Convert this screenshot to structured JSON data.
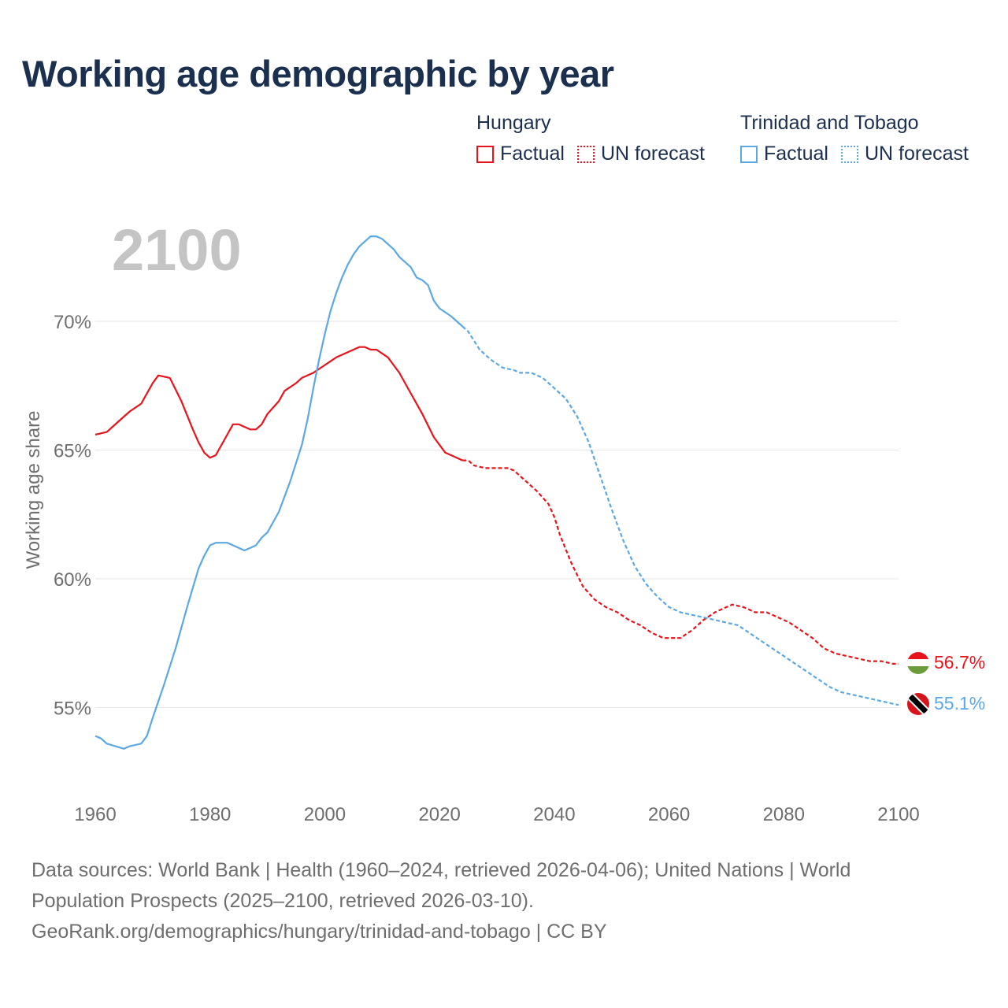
{
  "title": "Working age demographic by year",
  "big_year": "2100",
  "legend": [
    {
      "name": "Hungary",
      "factual_label": "Factual",
      "forecast_label": "UN forecast",
      "color": "#e8141c"
    },
    {
      "name": "Trinidad and Tobago",
      "factual_label": "Factual",
      "forecast_label": "UN forecast",
      "color": "#5ba8e4"
    }
  ],
  "colors": {
    "hungary": "#e8141c",
    "tt": "#5ba8e4",
    "grid": "#e6e6e6",
    "axis_text": "#6e6e6e",
    "big_year": "#c4c4c4"
  },
  "footer": {
    "line1": "Data sources: World Bank | Health (1960–2024, retrieved 2026-04-06); United Nations | World",
    "line2": "Population Prospects (2025–2100, retrieved 2026-03-10).",
    "line3": "GeoRank.org/demographics/hungary/trinidad-and-tobago | CC BY"
  },
  "chart_data": {
    "type": "line",
    "title": "Working age demographic by year",
    "xlabel": "",
    "ylabel": "Working age share",
    "xlim": [
      1960,
      2100
    ],
    "ylim": [
      52,
      74
    ],
    "x_ticks": [
      1960,
      1980,
      2000,
      2020,
      2040,
      2060,
      2080,
      2100
    ],
    "y_ticks": [
      55,
      60,
      65,
      70
    ],
    "y_tick_labels": [
      "55%",
      "60%",
      "65%",
      "70%"
    ],
    "factual_end_year": 2024,
    "series": [
      {
        "name": "Hungary",
        "end_label": "56.7%",
        "points": [
          [
            1960,
            65.6
          ],
          [
            1962,
            65.7
          ],
          [
            1964,
            66.1
          ],
          [
            1966,
            66.5
          ],
          [
            1968,
            66.8
          ],
          [
            1970,
            67.6
          ],
          [
            1971,
            67.9
          ],
          [
            1973,
            67.8
          ],
          [
            1975,
            66.9
          ],
          [
            1977,
            65.8
          ],
          [
            1978,
            65.3
          ],
          [
            1979,
            64.9
          ],
          [
            1980,
            64.7
          ],
          [
            1981,
            64.8
          ],
          [
            1983,
            65.6
          ],
          [
            1984,
            66.0
          ],
          [
            1985,
            66.0
          ],
          [
            1987,
            65.8
          ],
          [
            1988,
            65.8
          ],
          [
            1989,
            66.0
          ],
          [
            1990,
            66.4
          ],
          [
            1992,
            66.9
          ],
          [
            1993,
            67.3
          ],
          [
            1995,
            67.6
          ],
          [
            1996,
            67.8
          ],
          [
            1998,
            68.0
          ],
          [
            2000,
            68.3
          ],
          [
            2002,
            68.6
          ],
          [
            2004,
            68.8
          ],
          [
            2006,
            69.0
          ],
          [
            2007,
            69.0
          ],
          [
            2008,
            68.9
          ],
          [
            2009,
            68.9
          ],
          [
            2011,
            68.6
          ],
          [
            2013,
            68.0
          ],
          [
            2015,
            67.2
          ],
          [
            2017,
            66.4
          ],
          [
            2019,
            65.5
          ],
          [
            2021,
            64.9
          ],
          [
            2022,
            64.8
          ],
          [
            2024,
            64.6
          ],
          [
            2025,
            64.6
          ],
          [
            2026,
            64.4
          ],
          [
            2028,
            64.3
          ],
          [
            2030,
            64.3
          ],
          [
            2032,
            64.3
          ],
          [
            2033,
            64.2
          ],
          [
            2035,
            63.8
          ],
          [
            2037,
            63.4
          ],
          [
            2039,
            62.9
          ],
          [
            2040,
            62.4
          ],
          [
            2041,
            61.7
          ],
          [
            2043,
            60.6
          ],
          [
            2045,
            59.7
          ],
          [
            2047,
            59.2
          ],
          [
            2049,
            58.9
          ],
          [
            2051,
            58.7
          ],
          [
            2053,
            58.4
          ],
          [
            2055,
            58.2
          ],
          [
            2057,
            57.9
          ],
          [
            2059,
            57.7
          ],
          [
            2062,
            57.7
          ],
          [
            2064,
            58.0
          ],
          [
            2066,
            58.4
          ],
          [
            2068,
            58.7
          ],
          [
            2070,
            58.9
          ],
          [
            2071,
            59.0
          ],
          [
            2073,
            58.9
          ],
          [
            2075,
            58.7
          ],
          [
            2077,
            58.7
          ],
          [
            2079,
            58.5
          ],
          [
            2081,
            58.3
          ],
          [
            2083,
            58.0
          ],
          [
            2085,
            57.7
          ],
          [
            2087,
            57.3
          ],
          [
            2089,
            57.1
          ],
          [
            2091,
            57.0
          ],
          [
            2093,
            56.9
          ],
          [
            2095,
            56.8
          ],
          [
            2097,
            56.8
          ],
          [
            2099,
            56.7
          ],
          [
            2100,
            56.7
          ]
        ]
      },
      {
        "name": "Trinidad and Tobago",
        "end_label": "55.1%",
        "points": [
          [
            1960,
            53.9
          ],
          [
            1961,
            53.8
          ],
          [
            1962,
            53.6
          ],
          [
            1965,
            53.4
          ],
          [
            1966,
            53.5
          ],
          [
            1968,
            53.6
          ],
          [
            1969,
            53.9
          ],
          [
            1970,
            54.6
          ],
          [
            1972,
            55.9
          ],
          [
            1974,
            57.3
          ],
          [
            1976,
            58.9
          ],
          [
            1978,
            60.4
          ],
          [
            1979,
            60.9
          ],
          [
            1980,
            61.3
          ],
          [
            1981,
            61.4
          ],
          [
            1983,
            61.4
          ],
          [
            1984,
            61.3
          ],
          [
            1986,
            61.1
          ],
          [
            1988,
            61.3
          ],
          [
            1989,
            61.6
          ],
          [
            1990,
            61.8
          ],
          [
            1992,
            62.6
          ],
          [
            1994,
            63.8
          ],
          [
            1996,
            65.2
          ],
          [
            1997,
            66.2
          ],
          [
            1998,
            67.4
          ],
          [
            1999,
            68.5
          ],
          [
            2000,
            69.5
          ],
          [
            2001,
            70.4
          ],
          [
            2002,
            71.1
          ],
          [
            2003,
            71.7
          ],
          [
            2004,
            72.2
          ],
          [
            2005,
            72.6
          ],
          [
            2006,
            72.9
          ],
          [
            2007,
            73.1
          ],
          [
            2008,
            73.3
          ],
          [
            2009,
            73.3
          ],
          [
            2010,
            73.2
          ],
          [
            2011,
            73.0
          ],
          [
            2012,
            72.8
          ],
          [
            2013,
            72.5
          ],
          [
            2015,
            72.1
          ],
          [
            2016,
            71.7
          ],
          [
            2017,
            71.6
          ],
          [
            2018,
            71.4
          ],
          [
            2019,
            70.8
          ],
          [
            2020,
            70.5
          ],
          [
            2022,
            70.2
          ],
          [
            2024,
            69.8
          ],
          [
            2025,
            69.6
          ],
          [
            2027,
            68.9
          ],
          [
            2029,
            68.5
          ],
          [
            2031,
            68.2
          ],
          [
            2033,
            68.1
          ],
          [
            2034,
            68.0
          ],
          [
            2036,
            68.0
          ],
          [
            2038,
            67.8
          ],
          [
            2040,
            67.4
          ],
          [
            2042,
            67.0
          ],
          [
            2044,
            66.3
          ],
          [
            2046,
            65.3
          ],
          [
            2048,
            64.0
          ],
          [
            2050,
            62.7
          ],
          [
            2052,
            61.5
          ],
          [
            2054,
            60.5
          ],
          [
            2056,
            59.8
          ],
          [
            2058,
            59.3
          ],
          [
            2060,
            58.9
          ],
          [
            2062,
            58.7
          ],
          [
            2064,
            58.6
          ],
          [
            2066,
            58.5
          ],
          [
            2068,
            58.4
          ],
          [
            2070,
            58.3
          ],
          [
            2072,
            58.2
          ],
          [
            2074,
            57.9
          ],
          [
            2076,
            57.6
          ],
          [
            2078,
            57.3
          ],
          [
            2080,
            57.0
          ],
          [
            2082,
            56.7
          ],
          [
            2084,
            56.4
          ],
          [
            2086,
            56.1
          ],
          [
            2088,
            55.8
          ],
          [
            2090,
            55.6
          ],
          [
            2092,
            55.5
          ],
          [
            2094,
            55.4
          ],
          [
            2096,
            55.3
          ],
          [
            2098,
            55.2
          ],
          [
            2100,
            55.1
          ]
        ]
      }
    ]
  }
}
